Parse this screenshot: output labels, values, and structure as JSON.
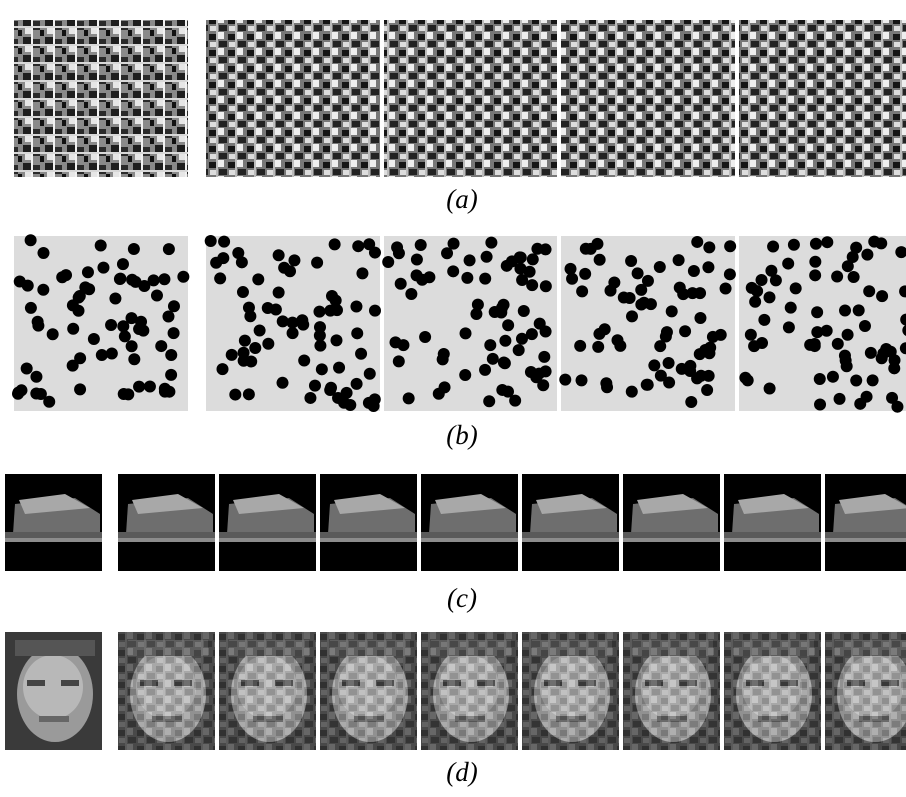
{
  "figure": {
    "captions": [
      "(a)",
      "(b)",
      "(c)",
      "(d)"
    ]
  }
}
